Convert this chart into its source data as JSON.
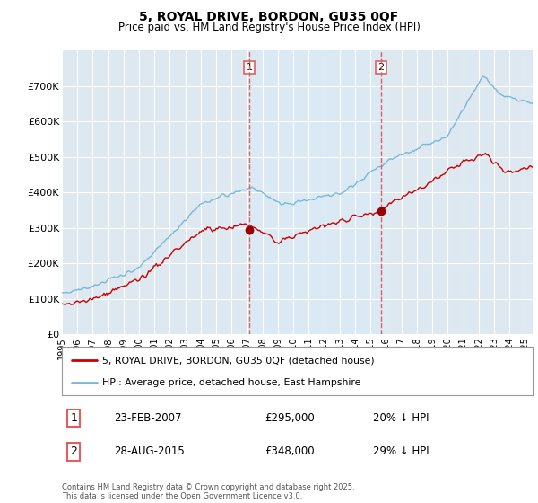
{
  "title": "5, ROYAL DRIVE, BORDON, GU35 0QF",
  "subtitle": "Price paid vs. HM Land Registry's House Price Index (HPI)",
  "x_start": 1995.0,
  "x_end": 2025.5,
  "y_min": 0,
  "y_max": 800000,
  "yticks": [
    0,
    100000,
    200000,
    300000,
    400000,
    500000,
    600000,
    700000
  ],
  "ytick_labels": [
    "£0",
    "£100K",
    "£200K",
    "£300K",
    "£400K",
    "£500K",
    "£600K",
    "£700K"
  ],
  "xticks": [
    1995,
    1996,
    1997,
    1998,
    1999,
    2000,
    2001,
    2002,
    2003,
    2004,
    2005,
    2006,
    2007,
    2008,
    2009,
    2010,
    2011,
    2012,
    2013,
    2014,
    2015,
    2016,
    2017,
    2018,
    2019,
    2020,
    2021,
    2022,
    2023,
    2024,
    2025
  ],
  "vline1_x": 2007.15,
  "vline2_x": 2015.67,
  "marker1_x": 2007.15,
  "marker1_y": 295000,
  "marker2_x": 2015.67,
  "marker2_y": 348000,
  "hpi_color": "#7ab8d9",
  "price_color": "#cc0000",
  "vline_color": "#e06060",
  "shade_color": "#daeaf5",
  "marker_color": "#990000",
  "bg_color": "#ffffff",
  "plot_bg_color": "#dde8f0",
  "grid_color": "#ffffff",
  "legend_label_price": "5, ROYAL DRIVE, BORDON, GU35 0QF (detached house)",
  "legend_label_hpi": "HPI: Average price, detached house, East Hampshire",
  "annotation1_label": "1",
  "annotation1_date": "23-FEB-2007",
  "annotation1_price": "£295,000",
  "annotation1_pct": "20% ↓ HPI",
  "annotation2_label": "2",
  "annotation2_date": "28-AUG-2015",
  "annotation2_price": "£348,000",
  "annotation2_pct": "29% ↓ HPI",
  "footer": "Contains HM Land Registry data © Crown copyright and database right 2025.\nThis data is licensed under the Open Government Licence v3.0."
}
